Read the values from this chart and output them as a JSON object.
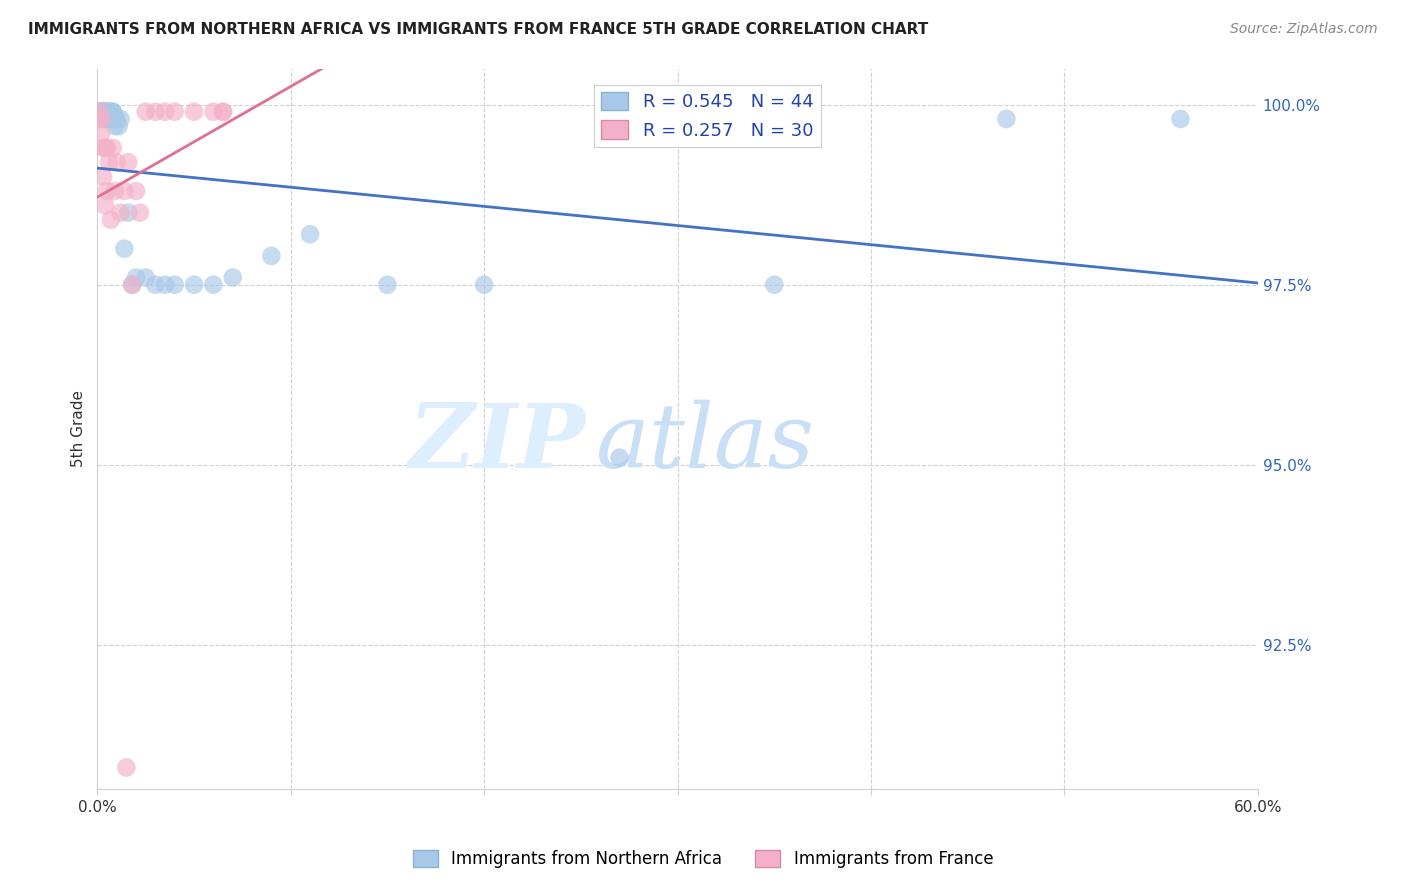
{
  "title": "IMMIGRANTS FROM NORTHERN AFRICA VS IMMIGRANTS FROM FRANCE 5TH GRADE CORRELATION CHART",
  "source": "Source: ZipAtlas.com",
  "xlim": [
    0.0,
    0.6
  ],
  "ylim": [
    0.905,
    1.005
  ],
  "yticks": [
    0.925,
    0.95,
    0.975,
    1.0
  ],
  "ytick_labels": [
    "92.5%",
    "95.0%",
    "97.5%",
    "100.0%"
  ],
  "xticks": [
    0.0,
    0.1,
    0.2,
    0.3,
    0.4,
    0.5,
    0.6
  ],
  "xtick_labels": [
    "0.0%",
    "",
    "",
    "",
    "",
    "",
    "60.0%"
  ],
  "ylabel": "5th Grade",
  "legend_bottom": [
    "Immigrants from Northern Africa",
    "Immigrants from France"
  ],
  "blue_R": "0.545",
  "blue_N": "44",
  "pink_R": "0.257",
  "pink_N": "30",
  "blue_color": "#a8c8e8",
  "pink_color": "#f4b0c8",
  "blue_line_color": "#4472c4",
  "pink_line_color": "#e07090",
  "blue_scatter_x": [
    0.001,
    0.001,
    0.002,
    0.002,
    0.002,
    0.003,
    0.003,
    0.003,
    0.004,
    0.004,
    0.004,
    0.005,
    0.005,
    0.005,
    0.006,
    0.006,
    0.007,
    0.007,
    0.008,
    0.008,
    0.009,
    0.009,
    0.01,
    0.011,
    0.012,
    0.014,
    0.016,
    0.018,
    0.02,
    0.025,
    0.03,
    0.035,
    0.04,
    0.05,
    0.06,
    0.07,
    0.09,
    0.11,
    0.15,
    0.2,
    0.27,
    0.35,
    0.47,
    0.56
  ],
  "blue_scatter_y": [
    0.999,
    0.999,
    0.999,
    0.999,
    0.999,
    0.999,
    0.999,
    0.999,
    0.999,
    0.999,
    0.998,
    0.999,
    0.999,
    0.998,
    0.999,
    0.998,
    0.999,
    0.998,
    0.999,
    0.999,
    0.998,
    0.997,
    0.998,
    0.997,
    0.998,
    0.98,
    0.985,
    0.975,
    0.976,
    0.976,
    0.975,
    0.975,
    0.975,
    0.975,
    0.975,
    0.976,
    0.979,
    0.982,
    0.975,
    0.975,
    0.951,
    0.975,
    0.998,
    0.998
  ],
  "pink_scatter_x": [
    0.001,
    0.001,
    0.002,
    0.002,
    0.003,
    0.003,
    0.004,
    0.004,
    0.005,
    0.005,
    0.006,
    0.007,
    0.008,
    0.009,
    0.01,
    0.012,
    0.014,
    0.016,
    0.018,
    0.02,
    0.022,
    0.025,
    0.03,
    0.035,
    0.04,
    0.05,
    0.06,
    0.065,
    0.065,
    0.015
  ],
  "pink_scatter_y": [
    0.999,
    0.998,
    0.998,
    0.996,
    0.994,
    0.99,
    0.994,
    0.986,
    0.994,
    0.988,
    0.992,
    0.984,
    0.994,
    0.988,
    0.992,
    0.985,
    0.988,
    0.992,
    0.975,
    0.988,
    0.985,
    0.999,
    0.999,
    0.999,
    0.999,
    0.999,
    0.999,
    0.999,
    0.999,
    0.908
  ],
  "watermark_zip": "ZIP",
  "watermark_atlas": "atlas",
  "grid_color": "#d0d0d0",
  "bg_color": "#ffffff",
  "title_fontsize": 11,
  "source_fontsize": 10,
  "tick_fontsize": 11,
  "legend_fontsize": 13,
  "ylabel_fontsize": 11,
  "watermark_color_zip": "#ddeeff",
  "watermark_color_atlas": "#c8dff5",
  "watermark_fontsize": 65
}
